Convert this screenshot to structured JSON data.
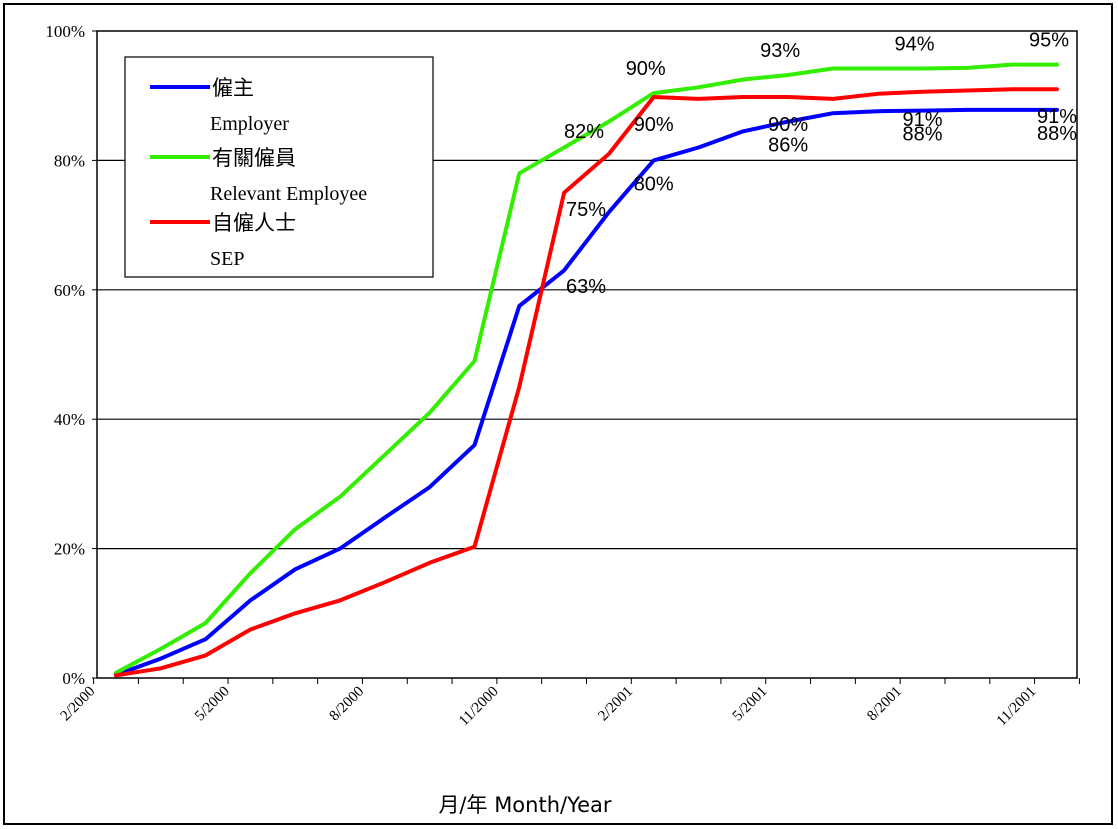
{
  "chart_data": {
    "type": "line",
    "xlabel": "月/年  Month/Year",
    "ylabel": "",
    "ylim": [
      0,
      1
    ],
    "yticks": [
      "0%",
      "20%",
      "40%",
      "60%",
      "80%",
      "100%"
    ],
    "x_tick_labels": [
      "2/2000",
      "5/2000",
      "8/2000",
      "11/2000",
      "2/2001",
      "5/2001",
      "8/2001",
      "11/2001"
    ],
    "x_months": [
      "2/2000",
      "3/2000",
      "4/2000",
      "5/2000",
      "6/2000",
      "7/2000",
      "8/2000",
      "9/2000",
      "10/2000",
      "11/2000",
      "12/2000",
      "1/2001",
      "2/2001",
      "3/2001",
      "4/2001",
      "5/2001",
      "6/2001",
      "7/2001",
      "8/2001",
      "9/2001",
      "10/2001",
      "11/2001"
    ],
    "grid": true,
    "legend_position": "top-left",
    "series": [
      {
        "name": "僱主",
        "name_en": "Employer",
        "color": "#0000ff",
        "values": [
          0.005,
          0.03,
          0.06,
          0.12,
          0.168,
          0.2,
          0.248,
          0.295,
          0.36,
          0.575,
          0.63,
          0.72,
          0.8,
          0.82,
          0.845,
          0.86,
          0.873,
          0.876,
          0.877,
          0.878,
          0.878,
          0.878
        ]
      },
      {
        "name": "有關僱員",
        "name_en": "Relevant Employee",
        "color": "#33ee00",
        "values": [
          0.008,
          0.045,
          0.085,
          0.162,
          0.23,
          0.28,
          0.345,
          0.41,
          0.49,
          0.78,
          0.82,
          0.86,
          0.904,
          0.913,
          0.925,
          0.932,
          0.942,
          0.942,
          0.942,
          0.943,
          0.948,
          0.948
        ]
      },
      {
        "name": "自僱人士",
        "name_en": "SEP",
        "color": "#ff0000",
        "values": [
          0.004,
          0.015,
          0.035,
          0.075,
          0.1,
          0.12,
          0.148,
          0.178,
          0.203,
          0.45,
          0.75,
          0.81,
          0.898,
          0.895,
          0.898,
          0.898,
          0.895,
          0.903,
          0.906,
          0.908,
          0.91,
          0.91
        ]
      }
    ],
    "annotations": [
      {
        "text": "82%",
        "series": 1,
        "index": 10
      },
      {
        "text": "90%",
        "series": 1,
        "index": 12
      },
      {
        "text": "93%",
        "series": 1,
        "index": 15
      },
      {
        "text": "94%",
        "series": 1,
        "index": 18
      },
      {
        "text": "95%",
        "series": 1,
        "index": 21
      },
      {
        "text": "75%",
        "series": 2,
        "index": 10
      },
      {
        "text": "90%",
        "series": 2,
        "index": 12
      },
      {
        "text": "90%",
        "series": 2,
        "index": 15
      },
      {
        "text": "91%",
        "series": 2,
        "index": 18
      },
      {
        "text": "91%",
        "series": 2,
        "index": 21
      },
      {
        "text": "63%",
        "series": 0,
        "index": 10
      },
      {
        "text": "80%",
        "series": 0,
        "index": 12
      },
      {
        "text": "86%",
        "series": 0,
        "index": 15
      },
      {
        "text": "88%",
        "series": 0,
        "index": 18
      },
      {
        "text": "88%",
        "series": 0,
        "index": 21
      }
    ]
  }
}
